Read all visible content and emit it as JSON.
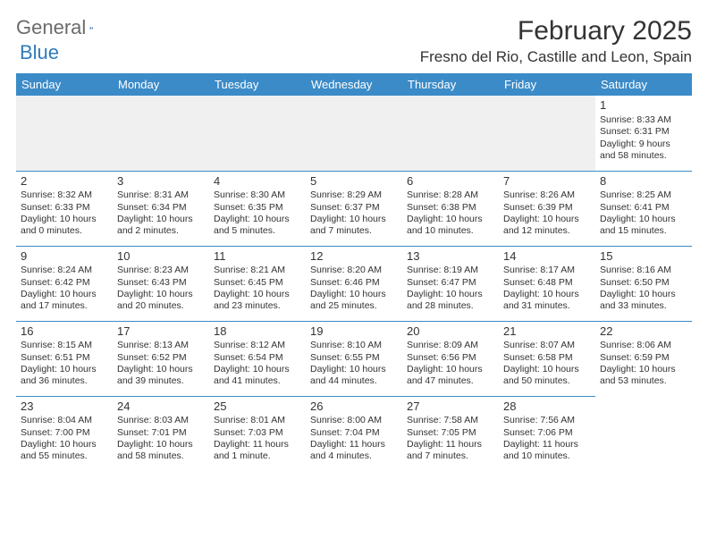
{
  "logo": {
    "text1": "General",
    "text2": "Blue"
  },
  "title": "February 2025",
  "location": "Fresno del Rio, Castille and Leon, Spain",
  "colors": {
    "header_bg": "#3b8bc8",
    "header_text": "#ffffff",
    "cell_border": "#3b8bc8",
    "empty_bg": "#f0f0f0",
    "body_text": "#333333",
    "logo_gray": "#6b6b6b",
    "logo_blue": "#2f7bbd",
    "page_bg": "#ffffff"
  },
  "weekdays": [
    "Sunday",
    "Monday",
    "Tuesday",
    "Wednesday",
    "Thursday",
    "Friday",
    "Saturday"
  ],
  "weeks": [
    [
      null,
      null,
      null,
      null,
      null,
      null,
      {
        "d": "1",
        "sr": "8:33 AM",
        "ss": "6:31 PM",
        "dl": "9 hours and 58 minutes."
      }
    ],
    [
      {
        "d": "2",
        "sr": "8:32 AM",
        "ss": "6:33 PM",
        "dl": "10 hours and 0 minutes."
      },
      {
        "d": "3",
        "sr": "8:31 AM",
        "ss": "6:34 PM",
        "dl": "10 hours and 2 minutes."
      },
      {
        "d": "4",
        "sr": "8:30 AM",
        "ss": "6:35 PM",
        "dl": "10 hours and 5 minutes."
      },
      {
        "d": "5",
        "sr": "8:29 AM",
        "ss": "6:37 PM",
        "dl": "10 hours and 7 minutes."
      },
      {
        "d": "6",
        "sr": "8:28 AM",
        "ss": "6:38 PM",
        "dl": "10 hours and 10 minutes."
      },
      {
        "d": "7",
        "sr": "8:26 AM",
        "ss": "6:39 PM",
        "dl": "10 hours and 12 minutes."
      },
      {
        "d": "8",
        "sr": "8:25 AM",
        "ss": "6:41 PM",
        "dl": "10 hours and 15 minutes."
      }
    ],
    [
      {
        "d": "9",
        "sr": "8:24 AM",
        "ss": "6:42 PM",
        "dl": "10 hours and 17 minutes."
      },
      {
        "d": "10",
        "sr": "8:23 AM",
        "ss": "6:43 PM",
        "dl": "10 hours and 20 minutes."
      },
      {
        "d": "11",
        "sr": "8:21 AM",
        "ss": "6:45 PM",
        "dl": "10 hours and 23 minutes."
      },
      {
        "d": "12",
        "sr": "8:20 AM",
        "ss": "6:46 PM",
        "dl": "10 hours and 25 minutes."
      },
      {
        "d": "13",
        "sr": "8:19 AM",
        "ss": "6:47 PM",
        "dl": "10 hours and 28 minutes."
      },
      {
        "d": "14",
        "sr": "8:17 AM",
        "ss": "6:48 PM",
        "dl": "10 hours and 31 minutes."
      },
      {
        "d": "15",
        "sr": "8:16 AM",
        "ss": "6:50 PM",
        "dl": "10 hours and 33 minutes."
      }
    ],
    [
      {
        "d": "16",
        "sr": "8:15 AM",
        "ss": "6:51 PM",
        "dl": "10 hours and 36 minutes."
      },
      {
        "d": "17",
        "sr": "8:13 AM",
        "ss": "6:52 PM",
        "dl": "10 hours and 39 minutes."
      },
      {
        "d": "18",
        "sr": "8:12 AM",
        "ss": "6:54 PM",
        "dl": "10 hours and 41 minutes."
      },
      {
        "d": "19",
        "sr": "8:10 AM",
        "ss": "6:55 PM",
        "dl": "10 hours and 44 minutes."
      },
      {
        "d": "20",
        "sr": "8:09 AM",
        "ss": "6:56 PM",
        "dl": "10 hours and 47 minutes."
      },
      {
        "d": "21",
        "sr": "8:07 AM",
        "ss": "6:58 PM",
        "dl": "10 hours and 50 minutes."
      },
      {
        "d": "22",
        "sr": "8:06 AM",
        "ss": "6:59 PM",
        "dl": "10 hours and 53 minutes."
      }
    ],
    [
      {
        "d": "23",
        "sr": "8:04 AM",
        "ss": "7:00 PM",
        "dl": "10 hours and 55 minutes."
      },
      {
        "d": "24",
        "sr": "8:03 AM",
        "ss": "7:01 PM",
        "dl": "10 hours and 58 minutes."
      },
      {
        "d": "25",
        "sr": "8:01 AM",
        "ss": "7:03 PM",
        "dl": "11 hours and 1 minute."
      },
      {
        "d": "26",
        "sr": "8:00 AM",
        "ss": "7:04 PM",
        "dl": "11 hours and 4 minutes."
      },
      {
        "d": "27",
        "sr": "7:58 AM",
        "ss": "7:05 PM",
        "dl": "11 hours and 7 minutes."
      },
      {
        "d": "28",
        "sr": "7:56 AM",
        "ss": "7:06 PM",
        "dl": "11 hours and 10 minutes."
      },
      null
    ]
  ],
  "labels": {
    "sunrise": "Sunrise:",
    "sunset": "Sunset:",
    "daylight": "Daylight:"
  }
}
